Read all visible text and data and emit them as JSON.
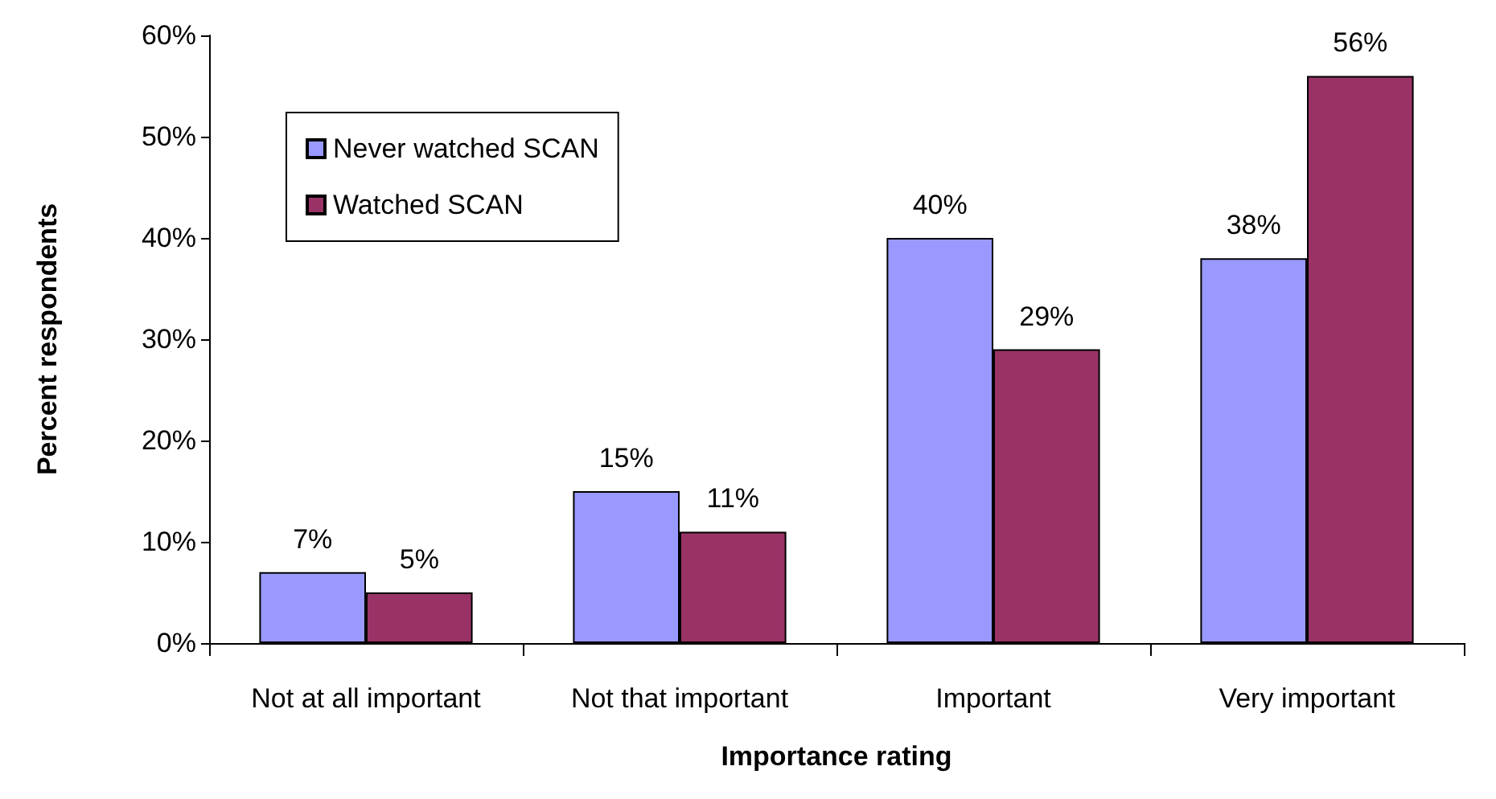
{
  "chart_data": {
    "type": "bar",
    "xlabel": "Importance rating",
    "ylabel": "Percent respondents",
    "categories": [
      "Not at all important",
      "Not that important",
      "Important",
      "Very important"
    ],
    "series": [
      {
        "name": "Never watched SCAN",
        "color": "#9999ff",
        "values": [
          7,
          15,
          40,
          38
        ],
        "value_labels": [
          "7%",
          "15%",
          "40%",
          "38%"
        ]
      },
      {
        "name": "Watched SCAN",
        "color": "#993366",
        "values": [
          5,
          11,
          29,
          56
        ],
        "value_labels": [
          "5%",
          "11%",
          "29%",
          "56%"
        ]
      }
    ],
    "ylim": [
      0,
      60
    ],
    "yticks": [
      {
        "value": 0,
        "label": "0%"
      },
      {
        "value": 10,
        "label": "10%"
      },
      {
        "value": 20,
        "label": "20%"
      },
      {
        "value": 30,
        "label": "30%"
      },
      {
        "value": 40,
        "label": "40%"
      },
      {
        "value": 50,
        "label": "50%"
      },
      {
        "value": 60,
        "label": "60%"
      }
    ],
    "grid": false,
    "legend": "top left"
  }
}
